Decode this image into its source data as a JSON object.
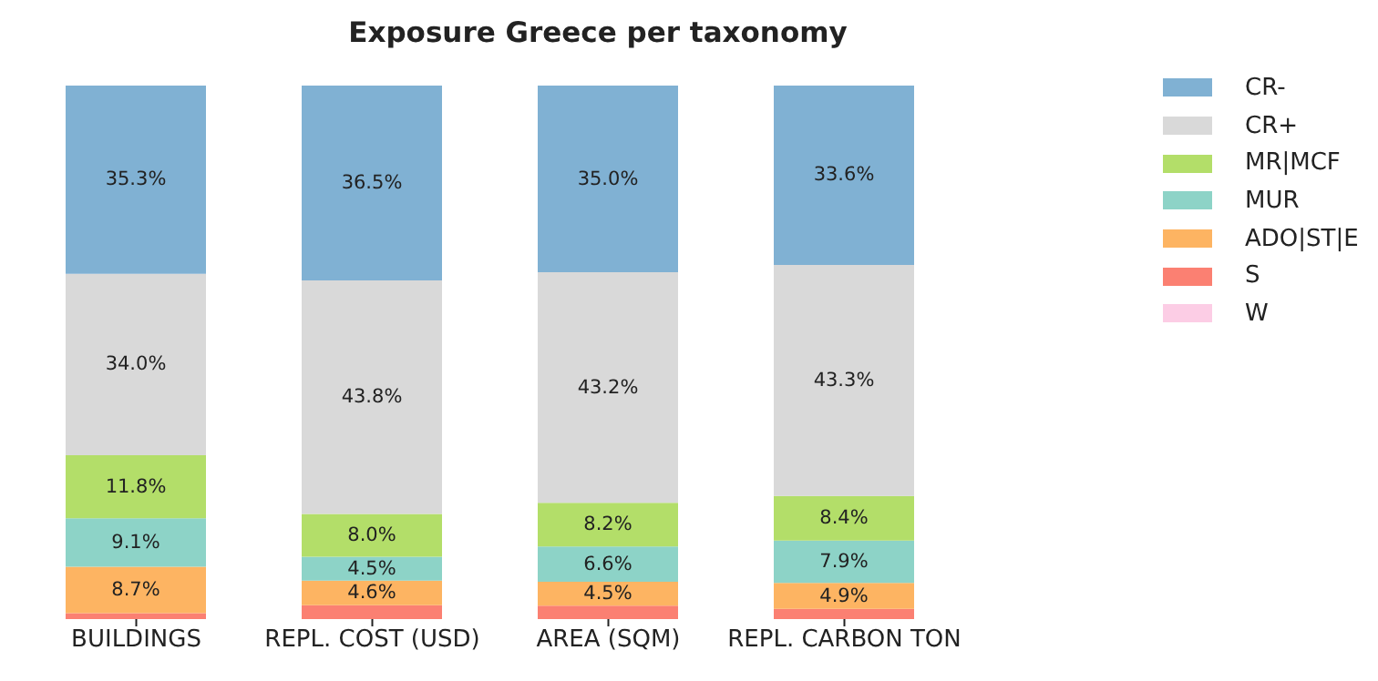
{
  "chart_data": {
    "type": "bar",
    "title": "Exposure Greece per taxonomy",
    "stacked": true,
    "categories": [
      "BUILDINGS",
      "REPL. COST (USD)",
      "AREA (SQM)",
      "REPL. CARBON TON"
    ],
    "series": [
      {
        "name": "W",
        "color": "#fccde5",
        "values": [
          0,
          0,
          0,
          0
        ],
        "value_labels": [
          null,
          null,
          null,
          null
        ]
      },
      {
        "name": "S",
        "color": "#fb8072",
        "values": [
          1.1,
          2.6,
          2.5,
          1.9
        ],
        "value_labels": [
          null,
          null,
          null,
          null
        ]
      },
      {
        "name": "ADO|ST|E",
        "color": "#fdb462",
        "values": [
          8.7,
          4.6,
          4.5,
          4.9
        ],
        "value_labels": [
          "8.7%",
          "4.6%",
          "4.5%",
          "4.9%"
        ]
      },
      {
        "name": "MUR",
        "color": "#8dd3c7",
        "values": [
          9.1,
          4.5,
          6.6,
          7.9
        ],
        "value_labels": [
          "9.1%",
          "4.5%",
          "6.6%",
          "7.9%"
        ]
      },
      {
        "name": "MR|MCF",
        "color": "#b3de69",
        "values": [
          11.8,
          8.0,
          8.2,
          8.4
        ],
        "value_labels": [
          "11.8%",
          "8.0%",
          "8.2%",
          "8.4%"
        ]
      },
      {
        "name": "CR+",
        "color": "#d9d9d9",
        "values": [
          34.0,
          43.8,
          43.2,
          43.3
        ],
        "value_labels": [
          "34.0%",
          "43.8%",
          "43.2%",
          "43.3%"
        ]
      },
      {
        "name": "CR-",
        "color": "#80b1d3",
        "values": [
          35.3,
          36.5,
          35.0,
          33.6
        ],
        "value_labels": [
          "35.3%",
          "36.5%",
          "35.0%",
          "33.6%"
        ]
      }
    ],
    "grid": false,
    "legend": "right"
  }
}
